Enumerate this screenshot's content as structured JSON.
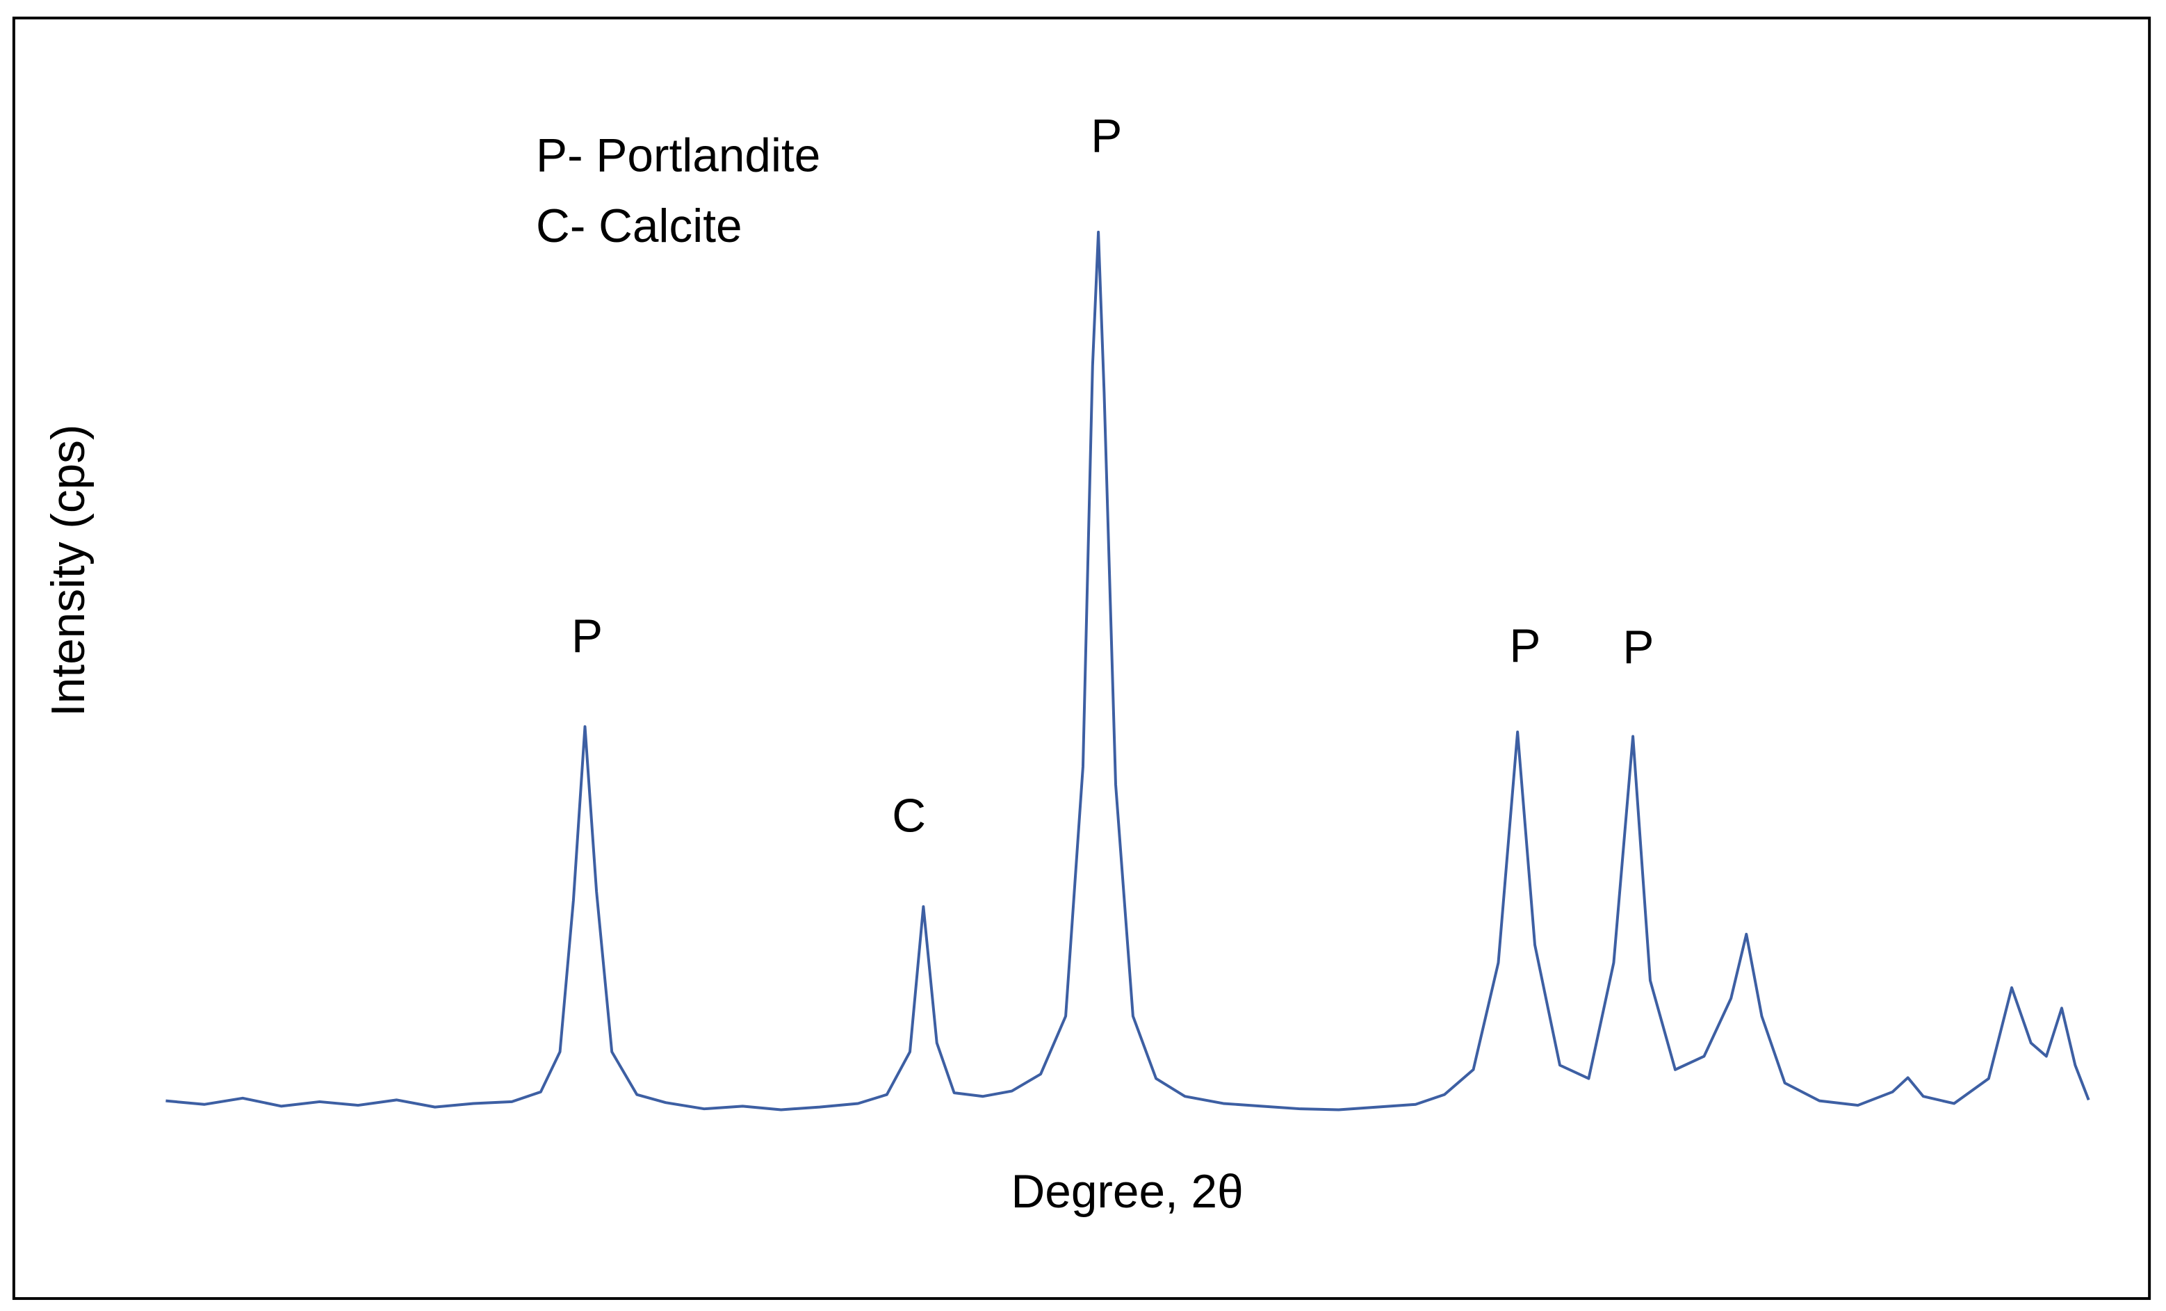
{
  "chart_data": {
    "type": "line",
    "x_label": "Degree, 2θ",
    "y_label": "Intensity (cps)",
    "notes": [
      "P- Portlandite",
      "C- Calcite"
    ],
    "annotations": [
      "P",
      "C",
      "P",
      "P",
      "P"
    ],
    "color": "#3d5fa3",
    "xlim": [
      0,
      100
    ],
    "ylim": [
      0,
      100
    ],
    "x": [
      0,
      2,
      4,
      6,
      8,
      10,
      12,
      14,
      16,
      18,
      19.5,
      20.5,
      21.2,
      21.8,
      22.4,
      23.2,
      24.5,
      26,
      28,
      30,
      32,
      34,
      36,
      37.5,
      38.7,
      39.4,
      40.1,
      41,
      42.5,
      44,
      45.5,
      46.8,
      47.7,
      48.2,
      48.5,
      48.8,
      49.4,
      50.3,
      51.5,
      53,
      55,
      57,
      59,
      61,
      63,
      65,
      66.5,
      68,
      69.3,
      70.3,
      71.2,
      72.5,
      74,
      75.3,
      76.3,
      77.2,
      78.5,
      80,
      81.4,
      82.2,
      83,
      84.2,
      86,
      88,
      89.8,
      90.6,
      91.4,
      93,
      94.8,
      96,
      97,
      97.8,
      98.6,
      99.3,
      100
    ],
    "values": [
      2.5,
      2.1,
      2.8,
      1.9,
      2.4,
      2.0,
      2.6,
      1.8,
      2.2,
      2.4,
      3.5,
      8,
      25,
      44.5,
      26,
      8,
      3.2,
      2.3,
      1.6,
      1.9,
      1.5,
      1.8,
      2.2,
      3.2,
      8,
      24.3,
      9,
      3.4,
      3.0,
      3.6,
      5.5,
      12,
      40,
      85,
      100,
      82,
      38,
      12,
      5,
      3,
      2.2,
      1.9,
      1.6,
      1.5,
      1.8,
      2.1,
      3.2,
      6,
      18,
      43.9,
      20,
      6.5,
      5,
      18,
      43.4,
      16,
      6,
      7.5,
      14,
      21.2,
      12,
      4.5,
      2.5,
      2,
      3.5,
      5.1,
      3,
      2.2,
      5,
      15.2,
      9,
      7.5,
      12.9,
      6.5,
      2.6
    ]
  }
}
